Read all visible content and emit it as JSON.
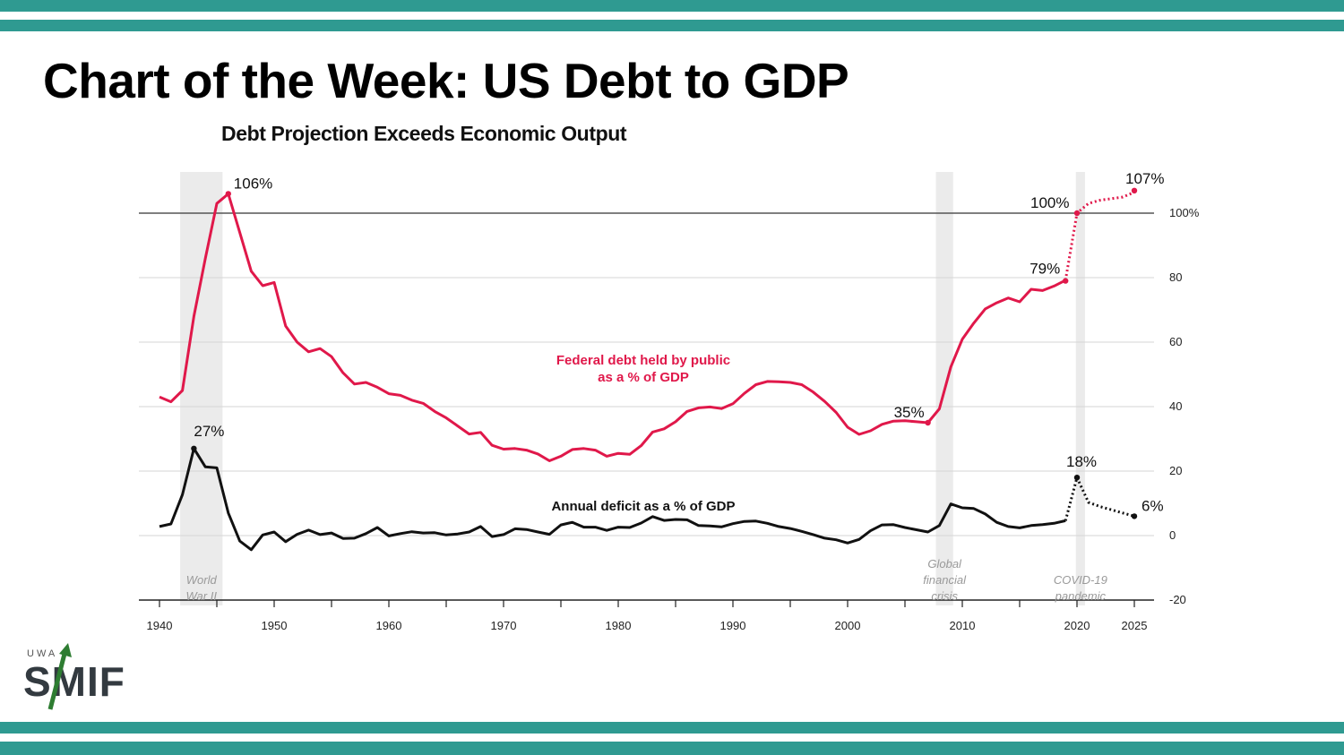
{
  "slide_title": "Chart of the Week: US Debt to GDP",
  "logo": {
    "top_text": "UWA",
    "word": "SMIF",
    "accent_color": "#2e7d32"
  },
  "colors": {
    "band": "#2f9a91",
    "debt": "#e0184a",
    "deficit": "#111111",
    "shade": "#ebebeb"
  },
  "chart_data": {
    "type": "line",
    "title": "Debt Projection Exceeds Economic Output",
    "xlabel": "",
    "ylabel": "",
    "xlim": [
      1939,
      2026
    ],
    "ylim": [
      -20,
      110
    ],
    "x_ticks": [
      1940,
      1950,
      1960,
      1970,
      1980,
      1990,
      2000,
      2010,
      2020,
      2025
    ],
    "y_ticks": [
      {
        "value": 100,
        "label": "100%"
      },
      {
        "value": 80,
        "label": "80"
      },
      {
        "value": 60,
        "label": "60"
      },
      {
        "value": 40,
        "label": "40"
      },
      {
        "value": 20,
        "label": "20"
      },
      {
        "value": 0,
        "label": "0"
      },
      {
        "value": -20,
        "label": "-20"
      }
    ],
    "reference_line": 100,
    "shaded_periods": [
      {
        "start": 1941.8,
        "end": 1945.5,
        "label": [
          "World",
          "War II"
        ]
      },
      {
        "start": 2007.7,
        "end": 2009.2,
        "label": [
          "Global",
          "financial",
          "crisis"
        ]
      },
      {
        "start": 2019.9,
        "end": 2020.7,
        "label": [
          "COVID-19",
          "pandemic"
        ]
      }
    ],
    "series": [
      {
        "name": "Federal debt held by public as a % of GDP",
        "label_lines": [
          "Federal debt held by public",
          "as a % of GDP"
        ],
        "color": "#e0184a",
        "points": [
          [
            1940,
            43
          ],
          [
            1941,
            41.5
          ],
          [
            1942,
            45
          ],
          [
            1943,
            68
          ],
          [
            1944,
            86
          ],
          [
            1945,
            103
          ],
          [
            1946,
            106
          ],
          [
            1947,
            94
          ],
          [
            1948,
            82
          ],
          [
            1949,
            77.5
          ],
          [
            1950,
            78.5
          ],
          [
            1951,
            65
          ],
          [
            1952,
            60
          ],
          [
            1953,
            57
          ],
          [
            1954,
            58
          ],
          [
            1955,
            55.5
          ],
          [
            1956,
            50.5
          ],
          [
            1957,
            47
          ],
          [
            1958,
            47.5
          ],
          [
            1959,
            46
          ],
          [
            1960,
            44
          ],
          [
            1961,
            43.5
          ],
          [
            1962,
            42
          ],
          [
            1963,
            41
          ],
          [
            1964,
            38.5
          ],
          [
            1965,
            36.5
          ],
          [
            1966,
            34
          ],
          [
            1967,
            31.5
          ],
          [
            1968,
            32
          ],
          [
            1969,
            28
          ],
          [
            1970,
            26.8
          ],
          [
            1971,
            27
          ],
          [
            1972,
            26.5
          ],
          [
            1973,
            25.3
          ],
          [
            1974,
            23.2
          ],
          [
            1975,
            24.6
          ],
          [
            1976,
            26.7
          ],
          [
            1977,
            27
          ],
          [
            1978,
            26.5
          ],
          [
            1979,
            24.6
          ],
          [
            1980,
            25.5
          ],
          [
            1981,
            25.2
          ],
          [
            1982,
            27.9
          ],
          [
            1983,
            32.1
          ],
          [
            1984,
            33.1
          ],
          [
            1985,
            35.3
          ],
          [
            1986,
            38.5
          ],
          [
            1987,
            39.6
          ],
          [
            1988,
            39.9
          ],
          [
            1989,
            39.4
          ],
          [
            1990,
            40.9
          ],
          [
            1991,
            44.1
          ],
          [
            1992,
            46.8
          ],
          [
            1993,
            47.8
          ],
          [
            1994,
            47.7
          ],
          [
            1995,
            47.5
          ],
          [
            1996,
            46.8
          ],
          [
            1997,
            44.5
          ],
          [
            1998,
            41.6
          ],
          [
            1999,
            38.2
          ],
          [
            2000,
            33.6
          ],
          [
            2001,
            31.4
          ],
          [
            2002,
            32.5
          ],
          [
            2003,
            34.5
          ],
          [
            2004,
            35.5
          ],
          [
            2005,
            35.6
          ],
          [
            2006,
            35.3
          ],
          [
            2007,
            35
          ],
          [
            2008,
            39.3
          ],
          [
            2009,
            52.3
          ],
          [
            2010,
            60.9
          ],
          [
            2011,
            65.9
          ],
          [
            2012,
            70.3
          ],
          [
            2013,
            72.2
          ],
          [
            2014,
            73.7
          ],
          [
            2015,
            72.5
          ],
          [
            2016,
            76.4
          ],
          [
            2017,
            76
          ],
          [
            2018,
            77.4
          ],
          [
            2019,
            79.2
          ]
        ],
        "projection": [
          [
            2019,
            79.2
          ],
          [
            2020,
            100
          ],
          [
            2021,
            103
          ],
          [
            2022,
            104
          ],
          [
            2023,
            104.5
          ],
          [
            2024,
            105
          ],
          [
            2025,
            106.5
          ]
        ],
        "annotations": [
          {
            "x": 1946,
            "y": 106,
            "label": "106%"
          },
          {
            "x": 2007,
            "y": 35,
            "label": "35%"
          },
          {
            "x": 2019,
            "y": 79,
            "label": "79%"
          },
          {
            "x": 2020,
            "y": 100,
            "label": "100%"
          },
          {
            "x": 2025,
            "y": 107,
            "label": "107%"
          }
        ]
      },
      {
        "name": "Annual deficit as a % of GDP",
        "label_lines": [
          "Annual deficit as a % of GDP"
        ],
        "color": "#111111",
        "points": [
          [
            1940,
            2.8
          ],
          [
            1941,
            3.6
          ],
          [
            1942,
            12.7
          ],
          [
            1943,
            27
          ],
          [
            1944,
            21.3
          ],
          [
            1945,
            21
          ],
          [
            1946,
            7
          ],
          [
            1947,
            -1.7
          ],
          [
            1948,
            -4.4
          ],
          [
            1949,
            0.2
          ],
          [
            1950,
            1.1
          ],
          [
            1951,
            -1.9
          ],
          [
            1952,
            0.4
          ],
          [
            1953,
            1.7
          ],
          [
            1954,
            0.3
          ],
          [
            1955,
            0.8
          ],
          [
            1956,
            -0.9
          ],
          [
            1957,
            -0.8
          ],
          [
            1958,
            0.6
          ],
          [
            1959,
            2.5
          ],
          [
            1960,
            -0.1
          ],
          [
            1961,
            0.6
          ],
          [
            1962,
            1.2
          ],
          [
            1963,
            0.8
          ],
          [
            1964,
            0.9
          ],
          [
            1965,
            0.2
          ],
          [
            1966,
            0.5
          ],
          [
            1967,
            1.1
          ],
          [
            1968,
            2.8
          ],
          [
            1969,
            -0.3
          ],
          [
            1970,
            0.3
          ],
          [
            1971,
            2.1
          ],
          [
            1972,
            1.9
          ],
          [
            1973,
            1.1
          ],
          [
            1974,
            0.4
          ],
          [
            1975,
            3.3
          ],
          [
            1976,
            4.1
          ],
          [
            1977,
            2.6
          ],
          [
            1978,
            2.6
          ],
          [
            1979,
            1.6
          ],
          [
            1980,
            2.6
          ],
          [
            1981,
            2.5
          ],
          [
            1982,
            3.9
          ],
          [
            1983,
            5.9
          ],
          [
            1984,
            4.7
          ],
          [
            1985,
            5
          ],
          [
            1986,
            4.9
          ],
          [
            1987,
            3.1
          ],
          [
            1988,
            3
          ],
          [
            1989,
            2.7
          ],
          [
            1990,
            3.7
          ],
          [
            1991,
            4.4
          ],
          [
            1992,
            4.5
          ],
          [
            1993,
            3.8
          ],
          [
            1994,
            2.8
          ],
          [
            1995,
            2.2
          ],
          [
            1996,
            1.3
          ],
          [
            1997,
            0.3
          ],
          [
            1998,
            -0.8
          ],
          [
            1999,
            -1.3
          ],
          [
            2000,
            -2.3
          ],
          [
            2001,
            -1.2
          ],
          [
            2002,
            1.5
          ],
          [
            2003,
            3.3
          ],
          [
            2004,
            3.4
          ],
          [
            2005,
            2.5
          ],
          [
            2006,
            1.8
          ],
          [
            2007,
            1.1
          ],
          [
            2008,
            3.1
          ],
          [
            2009,
            9.8
          ],
          [
            2010,
            8.6
          ],
          [
            2011,
            8.4
          ],
          [
            2012,
            6.7
          ],
          [
            2013,
            4.1
          ],
          [
            2014,
            2.8
          ],
          [
            2015,
            2.4
          ],
          [
            2016,
            3.1
          ],
          [
            2017,
            3.4
          ],
          [
            2018,
            3.8
          ],
          [
            2019,
            4.6
          ]
        ],
        "projection": [
          [
            2019,
            4.6
          ],
          [
            2020,
            18
          ],
          [
            2021,
            10.3
          ],
          [
            2022,
            9
          ],
          [
            2023,
            8
          ],
          [
            2024,
            7
          ],
          [
            2025,
            6
          ]
        ],
        "annotations": [
          {
            "x": 1943,
            "y": 27,
            "label": "27%"
          },
          {
            "x": 2020,
            "y": 18,
            "label": "18%"
          },
          {
            "x": 2025,
            "y": 6,
            "label": "6%"
          }
        ]
      }
    ]
  }
}
